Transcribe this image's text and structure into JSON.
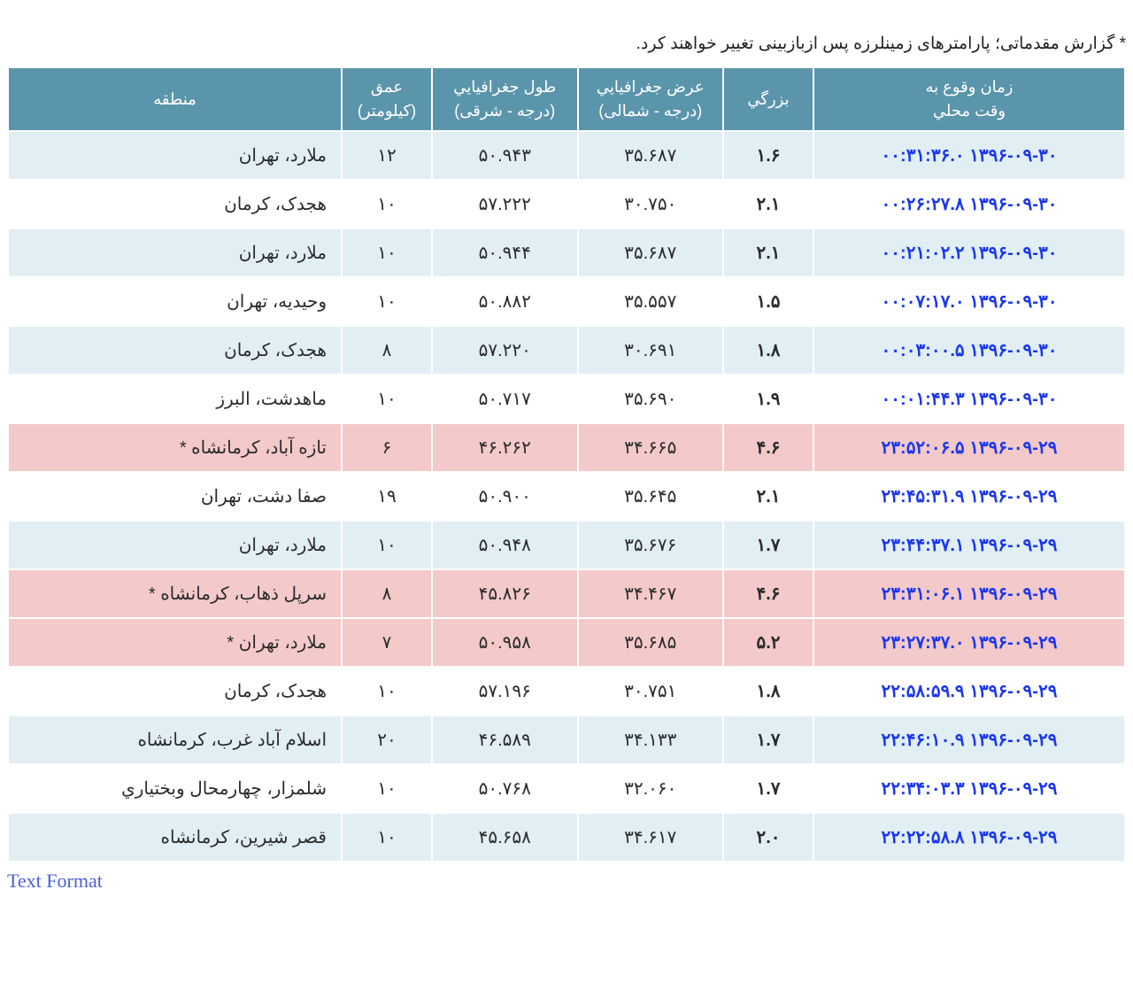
{
  "note_text": "* گزارش مقدماتی؛ پارامترهای زمینلرزه پس ازبازبینی تغییر خواهند کرد.",
  "footer_link": "Text Format",
  "colors": {
    "header_bg": "#5b95ac",
    "header_fg": "#ffffff",
    "row_even_bg": "#e1eff4",
    "row_odd_bg": "#ffffff",
    "row_highlight_bg": "#f3c9c9",
    "link_color": "#1a36f0",
    "text_color": "#2b2b2b"
  },
  "columns": [
    {
      "key": "time",
      "label_line1": "زمان وقوع به",
      "label_line2": "وقت محلي",
      "width": "28%"
    },
    {
      "key": "mag",
      "label_line1": "بزرگي",
      "label_line2": "",
      "width": "8%"
    },
    {
      "key": "lat",
      "label_line1": "عرض جغرافيايي",
      "label_line2": "(درجه - شمالی)",
      "width": "13%"
    },
    {
      "key": "lon",
      "label_line1": "طول جغرافيايي",
      "label_line2": "(درجه - شرقی)",
      "width": "13%"
    },
    {
      "key": "depth",
      "label_line1": "عمق",
      "label_line2": "(کيلومتر)",
      "width": "8%"
    },
    {
      "key": "region",
      "label_line1": "منطقه",
      "label_line2": "",
      "width": "30%"
    }
  ],
  "rows": [
    {
      "time": "۱۳۹۶-۰۹-۳۰ ۰۰:۳۱:۳۶.۰",
      "mag": "۱.۶",
      "lat": "۳۵.۶۸۷",
      "lon": "۵۰.۹۴۳",
      "depth": "۱۲",
      "region": "ملارد، تهران",
      "hl": false
    },
    {
      "time": "۱۳۹۶-۰۹-۳۰ ۰۰:۲۶:۲۷.۸",
      "mag": "۲.۱",
      "lat": "۳۰.۷۵۰",
      "lon": "۵۷.۲۲۲",
      "depth": "۱۰",
      "region": "هجدک، کرمان",
      "hl": false
    },
    {
      "time": "۱۳۹۶-۰۹-۳۰ ۰۰:۲۱:۰۲.۲",
      "mag": "۲.۱",
      "lat": "۳۵.۶۸۷",
      "lon": "۵۰.۹۴۴",
      "depth": "۱۰",
      "region": "ملارد، تهران",
      "hl": false
    },
    {
      "time": "۱۳۹۶-۰۹-۳۰ ۰۰:۰۷:۱۷.۰",
      "mag": "۱.۵",
      "lat": "۳۵.۵۵۷",
      "lon": "۵۰.۸۸۲",
      "depth": "۱۰",
      "region": "وحيديه، تهران",
      "hl": false
    },
    {
      "time": "۱۳۹۶-۰۹-۳۰ ۰۰:۰۳:۰۰.۵",
      "mag": "۱.۸",
      "lat": "۳۰.۶۹۱",
      "lon": "۵۷.۲۲۰",
      "depth": "۸",
      "region": "هجدک، کرمان",
      "hl": false
    },
    {
      "time": "۱۳۹۶-۰۹-۳۰ ۰۰:۰۱:۴۴.۳",
      "mag": "۱.۹",
      "lat": "۳۵.۶۹۰",
      "lon": "۵۰.۷۱۷",
      "depth": "۱۰",
      "region": "ماهدشت، البرز",
      "hl": false
    },
    {
      "time": "۱۳۹۶-۰۹-۲۹ ۲۳:۵۲:۰۶.۵",
      "mag": "۴.۶",
      "lat": "۳۴.۶۶۵",
      "lon": "۴۶.۲۶۲",
      "depth": "۶",
      "region": "تازه آباد، کرمانشاه *",
      "hl": true
    },
    {
      "time": "۱۳۹۶-۰۹-۲۹ ۲۳:۴۵:۳۱.۹",
      "mag": "۲.۱",
      "lat": "۳۵.۶۴۵",
      "lon": "۵۰.۹۰۰",
      "depth": "۱۹",
      "region": "صفا دشت، تهران",
      "hl": false
    },
    {
      "time": "۱۳۹۶-۰۹-۲۹ ۲۳:۴۴:۳۷.۱",
      "mag": "۱.۷",
      "lat": "۳۵.۶۷۶",
      "lon": "۵۰.۹۴۸",
      "depth": "۱۰",
      "region": "ملارد، تهران",
      "hl": false
    },
    {
      "time": "۱۳۹۶-۰۹-۲۹ ۲۳:۳۱:۰۶.۱",
      "mag": "۴.۶",
      "lat": "۳۴.۴۶۷",
      "lon": "۴۵.۸۲۶",
      "depth": "۸",
      "region": "سرپل ذهاب، کرمانشاه *",
      "hl": true
    },
    {
      "time": "۱۳۹۶-۰۹-۲۹ ۲۳:۲۷:۳۷.۰",
      "mag": "۵.۲",
      "lat": "۳۵.۶۸۵",
      "lon": "۵۰.۹۵۸",
      "depth": "۷",
      "region": "ملارد، تهران *",
      "hl": true
    },
    {
      "time": "۱۳۹۶-۰۹-۲۹ ۲۲:۵۸:۵۹.۹",
      "mag": "۱.۸",
      "lat": "۳۰.۷۵۱",
      "lon": "۵۷.۱۹۶",
      "depth": "۱۰",
      "region": "هجدک، کرمان",
      "hl": false
    },
    {
      "time": "۱۳۹۶-۰۹-۲۹ ۲۲:۴۶:۱۰.۹",
      "mag": "۱.۷",
      "lat": "۳۴.۱۳۳",
      "lon": "۴۶.۵۸۹",
      "depth": "۲۰",
      "region": "اسلام آباد غرب، کرمانشاه",
      "hl": false
    },
    {
      "time": "۱۳۹۶-۰۹-۲۹ ۲۲:۳۴:۰۳.۳",
      "mag": "۱.۷",
      "lat": "۳۲.۰۶۰",
      "lon": "۵۰.۷۶۸",
      "depth": "۱۰",
      "region": "شلمزار، چهارمحال وبختياري",
      "hl": false
    },
    {
      "time": "۱۳۹۶-۰۹-۲۹ ۲۲:۲۲:۵۸.۸",
      "mag": "۲.۰",
      "lat": "۳۴.۶۱۷",
      "lon": "۴۵.۶۵۸",
      "depth": "۱۰",
      "region": "قصر شيرين، کرمانشاه",
      "hl": false
    }
  ]
}
